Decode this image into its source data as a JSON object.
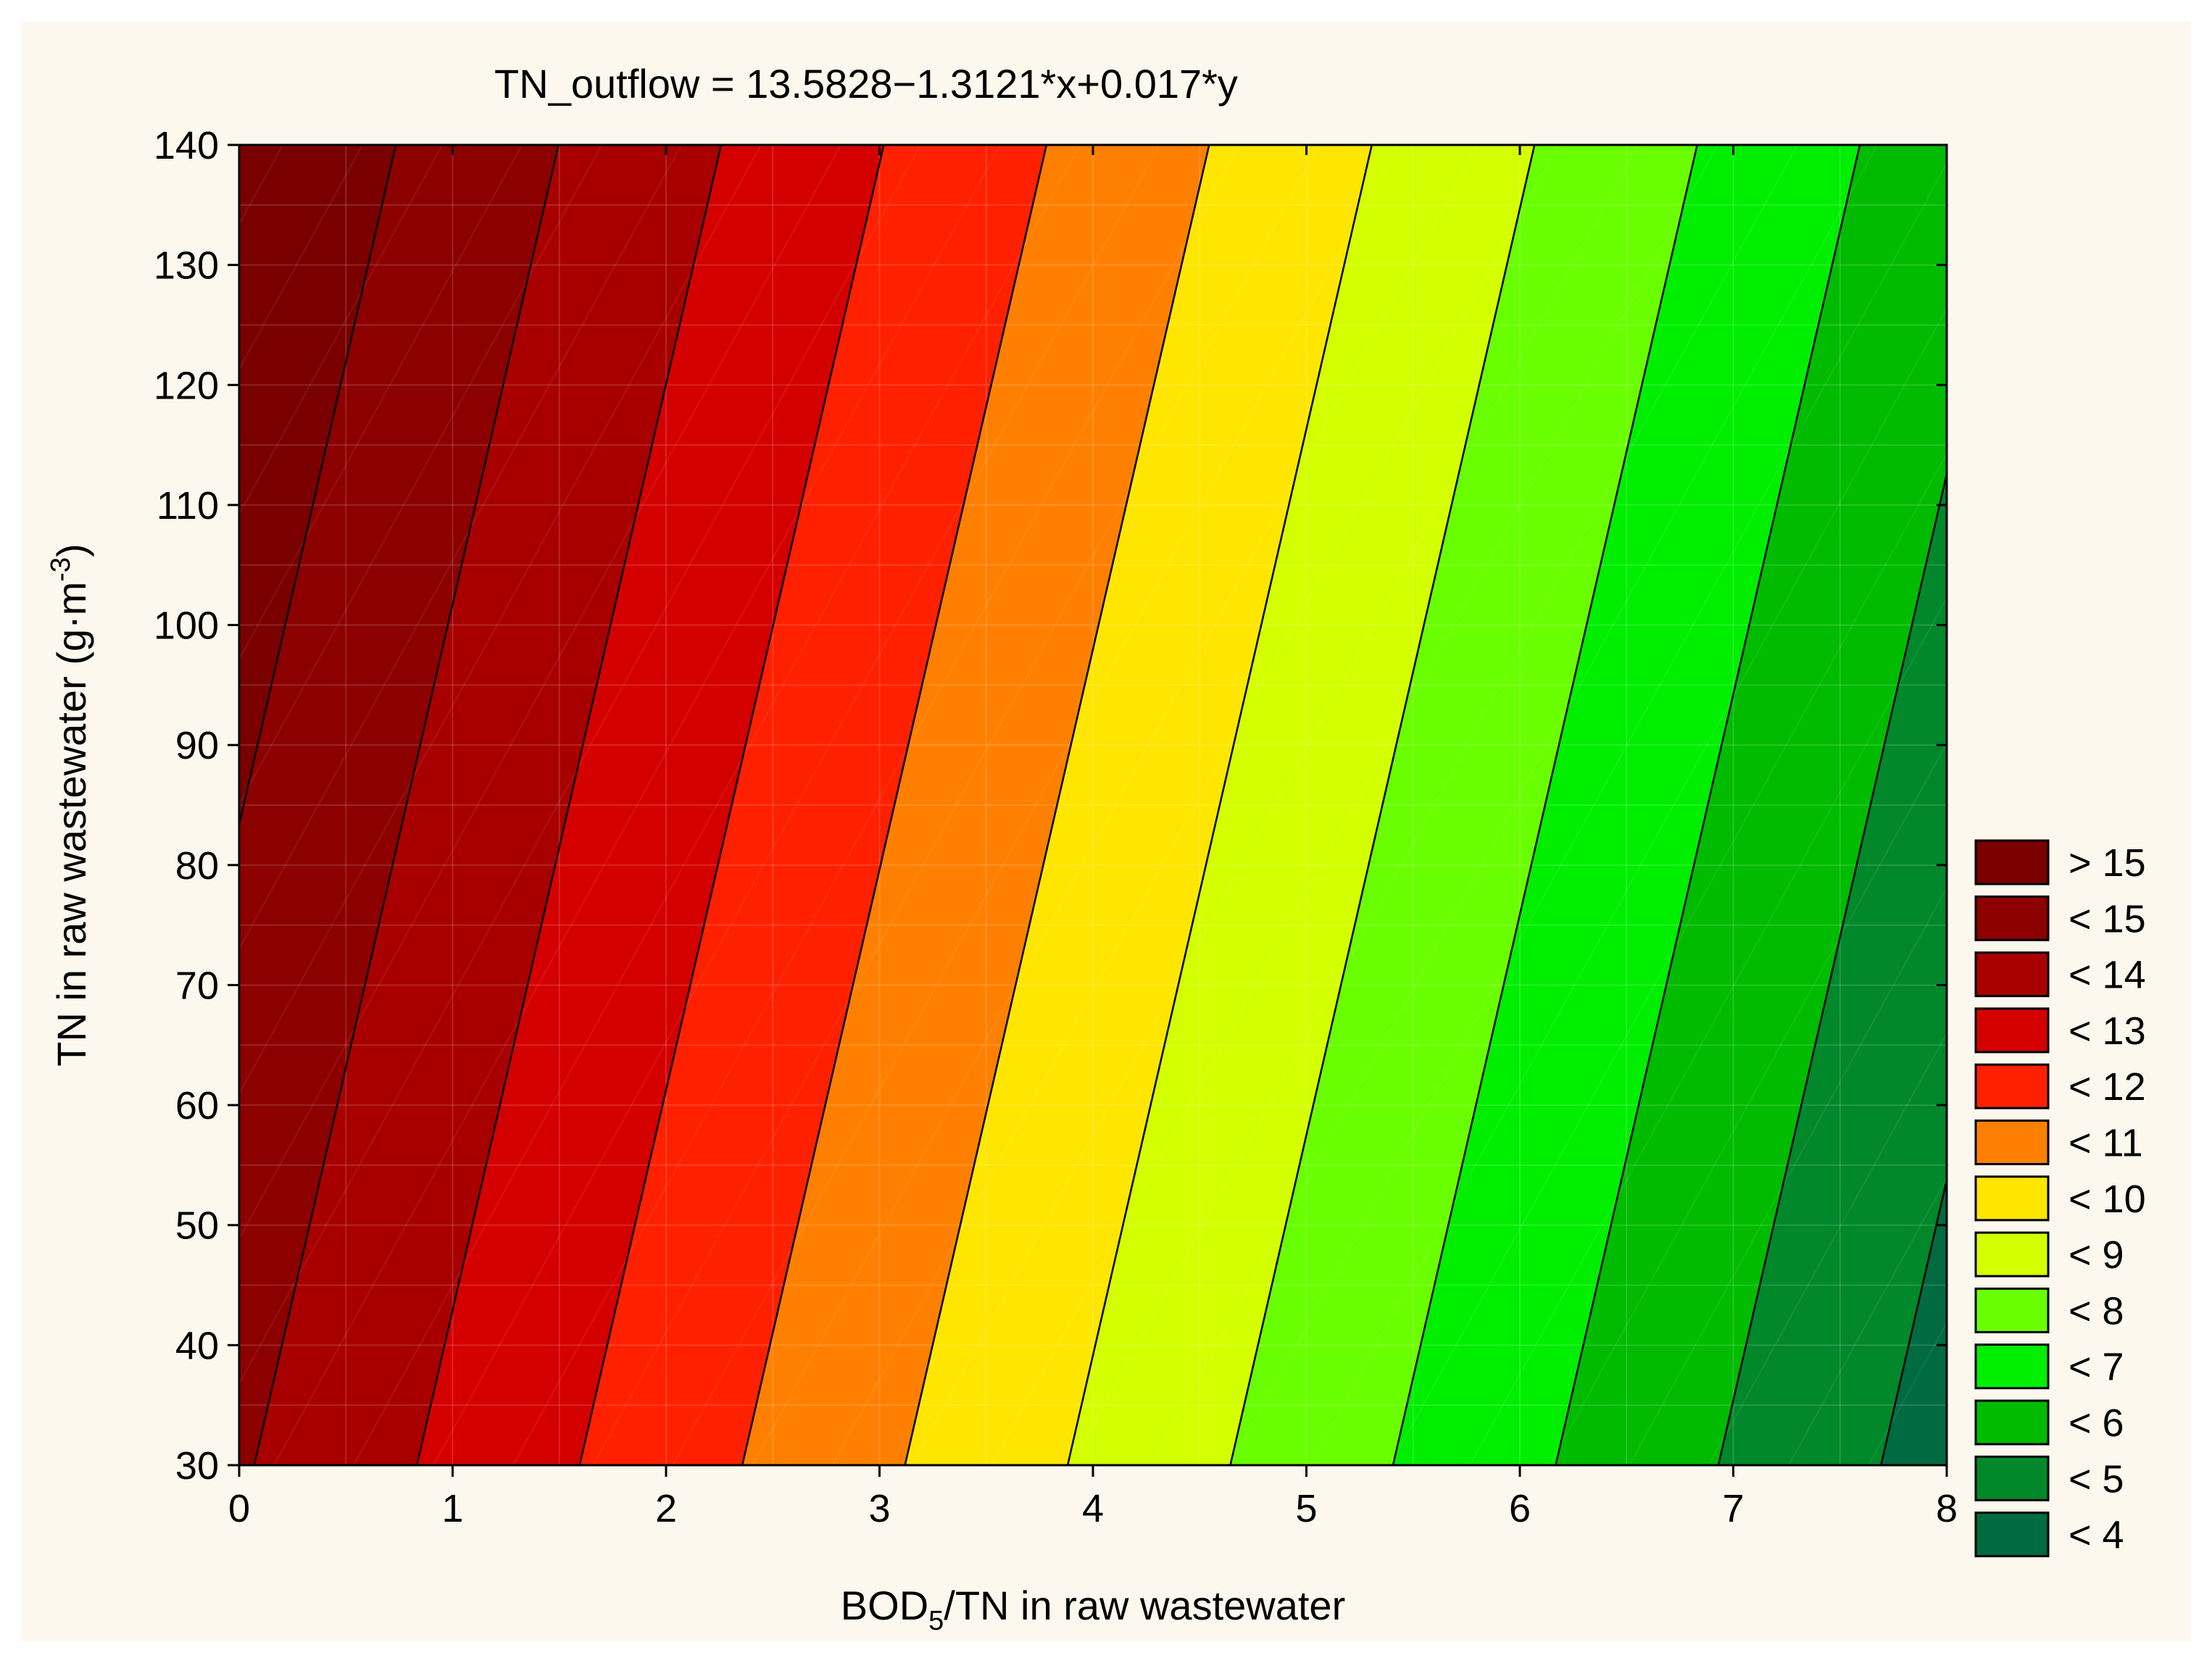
{
  "chart_data": {
    "type": "contour",
    "title": "TN_outflow = 13.5828−1.3121*x+0.017*y",
    "equation": {
      "intercept": 13.5828,
      "x_coef": -1.3121,
      "y_coef": 0.017
    },
    "xlabel": {
      "main": "BOD",
      "sub": "5",
      "rest": "/TN in raw wastewater"
    },
    "ylabel": {
      "main": "TN in raw wastewater (g·m",
      "sup": "-3",
      "rest": ")"
    },
    "xlim": [
      0,
      8
    ],
    "ylim": [
      30,
      140
    ],
    "x_ticks": [
      "0",
      "1",
      "2",
      "3",
      "4",
      "5",
      "6",
      "7",
      "8"
    ],
    "y_ticks": [
      "30",
      "40",
      "50",
      "60",
      "70",
      "80",
      "90",
      "100",
      "110",
      "120",
      "130",
      "140"
    ],
    "grid": true,
    "legend_position": "bottom-right",
    "levels": [
      {
        "label": "> 15",
        "min": 15,
        "max": null,
        "color": "#7a0000"
      },
      {
        "label": "< 15",
        "min": 14,
        "max": 15,
        "color": "#8c0000"
      },
      {
        "label": "< 14",
        "min": 13,
        "max": 14,
        "color": "#a80000"
      },
      {
        "label": "< 13",
        "min": 12,
        "max": 13,
        "color": "#d40000"
      },
      {
        "label": "< 12",
        "min": 11,
        "max": 12,
        "color": "#ff2000"
      },
      {
        "label": "< 11",
        "min": 10,
        "max": 11,
        "color": "#ff8000"
      },
      {
        "label": "< 10",
        "min": 9,
        "max": 10,
        "color": "#ffe600"
      },
      {
        "label": "< 9",
        "min": 8,
        "max": 9,
        "color": "#d4ff00"
      },
      {
        "label": "< 8",
        "min": 7,
        "max": 8,
        "color": "#6aff00"
      },
      {
        "label": "< 7",
        "min": 6,
        "max": 7,
        "color": "#00ee00"
      },
      {
        "label": "< 6",
        "min": 5,
        "max": 6,
        "color": "#00bb00"
      },
      {
        "label": "< 5",
        "min": 4,
        "max": 5,
        "color": "#00882a"
      },
      {
        "label": "< 4",
        "min": null,
        "max": 4,
        "color": "#006a40"
      }
    ]
  }
}
